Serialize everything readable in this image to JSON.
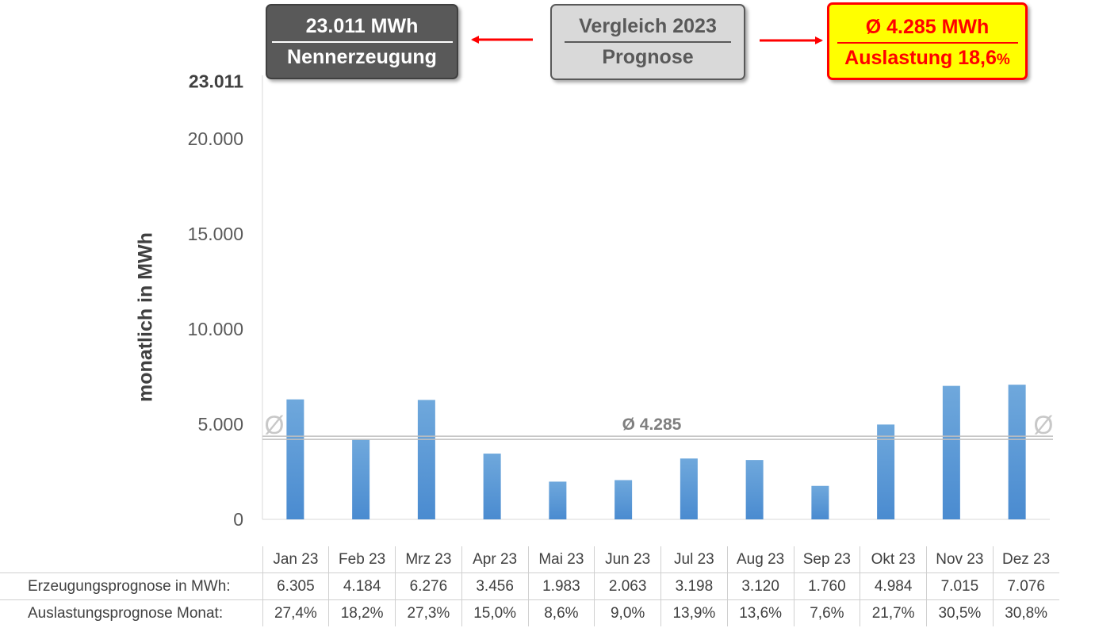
{
  "boxes": {
    "nenn_value": "23.011 MWh",
    "nenn_label": "Nennerzeugung",
    "vergleich_l1": "Vergleich 2023",
    "vergleich_l2": "Prognose",
    "avg_value": "Ø 4.285 MWh",
    "avg_label": "Auslastung 18,6",
    "avg_pct": "%"
  },
  "colors": {
    "bar": "#5b9bd5",
    "arrow": "#ff0000",
    "avg_line": "#bfbfbf",
    "text": "#404040"
  },
  "chart_data": {
    "type": "bar",
    "ylabel": "monatlich in MWh",
    "ylim": [
      0,
      23011
    ],
    "yticks": [
      0,
      5000,
      10000,
      15000,
      20000,
      23011
    ],
    "ytick_labels": [
      "0",
      "5.000",
      "10.000",
      "15.000",
      "20.000",
      "23.011"
    ],
    "categories": [
      "Jan 23",
      "Feb 23",
      "Mrz 23",
      "Apr 23",
      "Mai 23",
      "Jun 23",
      "Jul 23",
      "Aug 23",
      "Sep 23",
      "Okt 23",
      "Nov 23",
      "Dez 23"
    ],
    "values": [
      6305,
      4184,
      6276,
      3456,
      1983,
      2063,
      3198,
      3120,
      1760,
      4984,
      7015,
      7076
    ],
    "average": 4285,
    "average_label": "Ø 4.285",
    "average_symbol": "Ø"
  },
  "table": {
    "row1_label": "Erzeugungsprognose in MWh:",
    "row1_values": [
      "6.305",
      "4.184",
      "6.276",
      "3.456",
      "1.983",
      "2.063",
      "3.198",
      "3.120",
      "1.760",
      "4.984",
      "7.015",
      "7.076"
    ],
    "row2_label": "Auslastungsprognose Monat:",
    "row2_values": [
      "27,4%",
      "18,2%",
      "27,3%",
      "15,0%",
      "8,6%",
      "9,0%",
      "13,9%",
      "13,6%",
      "7,6%",
      "21,7%",
      "30,5%",
      "30,8%"
    ]
  }
}
